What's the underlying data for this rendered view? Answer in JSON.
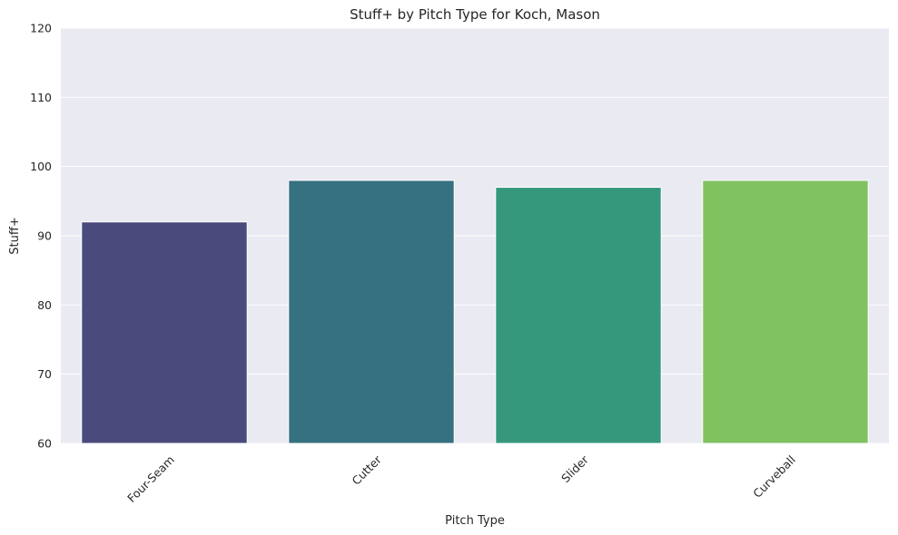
{
  "chart_data": {
    "type": "bar",
    "title": "Stuff+ by Pitch Type for Koch, Mason",
    "xlabel": "Pitch Type",
    "ylabel": "Stuff+",
    "categories": [
      "Four-Seam",
      "Cutter",
      "Slider",
      "Curveball"
    ],
    "values": [
      92,
      98,
      97,
      98
    ],
    "colors": [
      "#4a4b7c",
      "#367180",
      "#35987c",
      "#80c260"
    ],
    "ylim": [
      60,
      120
    ],
    "yticks": [
      60,
      70,
      80,
      90,
      100,
      110,
      120
    ],
    "grid": true,
    "legend": "none",
    "background": "#eaeaf2"
  }
}
